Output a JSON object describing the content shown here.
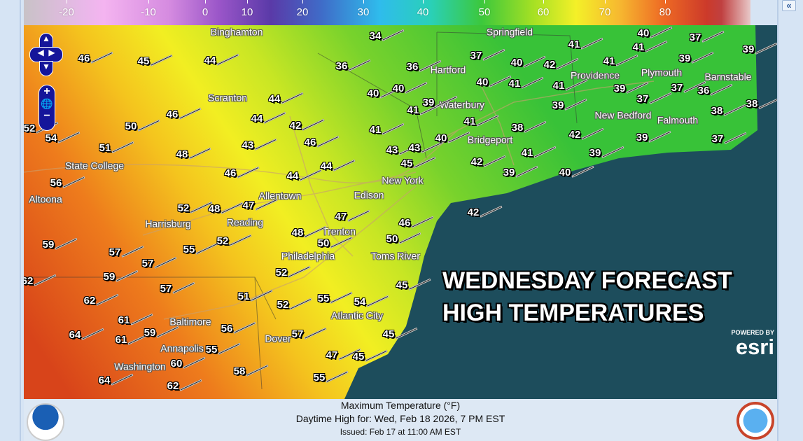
{
  "legend": {
    "ticks": [
      "-20",
      "-10",
      "0",
      "10",
      "20",
      "30",
      "40",
      "50",
      "60",
      "70",
      "80"
    ],
    "unit": "°F"
  },
  "panel": {
    "collapse_label": "«"
  },
  "map_controls": {
    "zoom_in": "+",
    "zoom_out": "−"
  },
  "overlay": {
    "line1": "WEDNESDAY FORECAST",
    "line2": "HIGH TEMPERATURES"
  },
  "esri": {
    "powered_by": "POWERED BY",
    "logo": "esri"
  },
  "footer": {
    "title": "Maximum Temperature (°F)",
    "valid": "Daytime High for: Wed, Feb 18 2026,   7 PM EST",
    "issued": "Issued: Feb 17 at 11:00 AM EST",
    "left_logo": "NOAA",
    "right_logo": "National Weather Service"
  },
  "colors": {
    "ocean": "#1d4d5c",
    "panel": "#d6e4f4",
    "nav_control": "#15159a"
  },
  "cities": [
    "Binghamton",
    "Springfield",
    "Hartford",
    "Waterbury",
    "Providence",
    "Plymouth",
    "New Bedford",
    "Barnstable",
    "Falmouth",
    "Bridgeport",
    "Scranton",
    "State College",
    "Allentown",
    "Reading",
    "Harrisburg",
    "Trenton",
    "New York",
    "Edison",
    "Philadelphia",
    "Toms River",
    "Altoona",
    "Atlantic City",
    "Baltimore",
    "Dover",
    "Annapolis",
    "Washington"
  ],
  "temperatures": [
    "46",
    "45",
    "44",
    "34",
    "36",
    "36",
    "40",
    "40",
    "41",
    "39",
    "41",
    "43",
    "43",
    "45",
    "40",
    "37",
    "40",
    "40",
    "41",
    "42",
    "41",
    "39",
    "41",
    "38",
    "42",
    "39",
    "41",
    "40",
    "42",
    "39",
    "39",
    "41",
    "41",
    "40",
    "37",
    "39",
    "39",
    "37",
    "37",
    "36",
    "38",
    "37",
    "39",
    "38",
    "41",
    "42",
    "46",
    "50",
    "45",
    "54",
    "45",
    "47",
    "45",
    "55",
    "55",
    "57",
    "52",
    "51",
    "56",
    "55",
    "58",
    "62",
    "60",
    "64",
    "64",
    "62",
    "61",
    "61",
    "59",
    "59",
    "57",
    "57",
    "57",
    "55",
    "52",
    "52",
    "48",
    "47",
    "47",
    "48",
    "52",
    "50",
    "59",
    "62",
    "56",
    "51",
    "48",
    "46",
    "50",
    "46",
    "44",
    "44",
    "43",
    "42",
    "46",
    "44",
    "44",
    "54",
    "52"
  ]
}
